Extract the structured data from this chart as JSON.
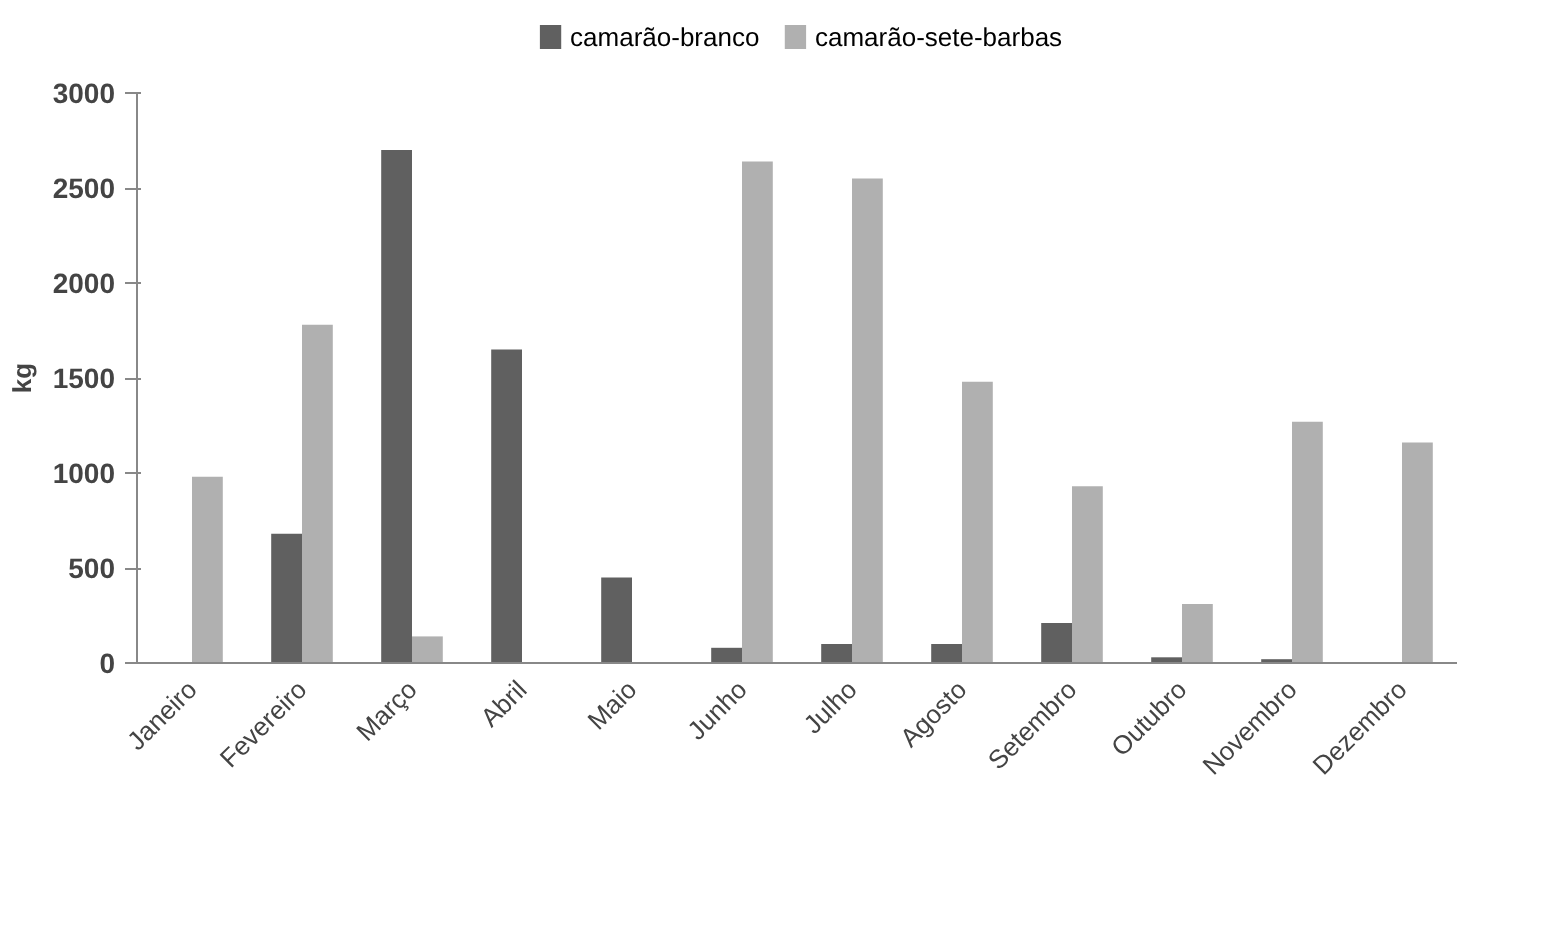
{
  "chart_data": {
    "type": "bar",
    "ylabel": "kg",
    "categories": [
      "Janeiro",
      "Fevereiro",
      "Março",
      "Abril",
      "Maio",
      "Junho",
      "Julho",
      "Agosto",
      "Setembro",
      "Outubro",
      "Novembro",
      "Dezembro"
    ],
    "series": [
      {
        "name": "camarão-branco",
        "color": "#606060",
        "values": [
          0,
          680,
          2700,
          1650,
          450,
          80,
          100,
          100,
          210,
          30,
          20,
          0
        ]
      },
      {
        "name": "camarão-sete-barbas",
        "color": "#b0b0b0",
        "values": [
          980,
          1780,
          140,
          0,
          0,
          2640,
          2550,
          1480,
          930,
          310,
          1270,
          1160
        ]
      }
    ],
    "ylim": [
      0,
      3000
    ],
    "yticks": [
      0,
      500,
      1000,
      1500,
      2000,
      2500,
      3000
    ],
    "grid": false,
    "legend": "top"
  }
}
